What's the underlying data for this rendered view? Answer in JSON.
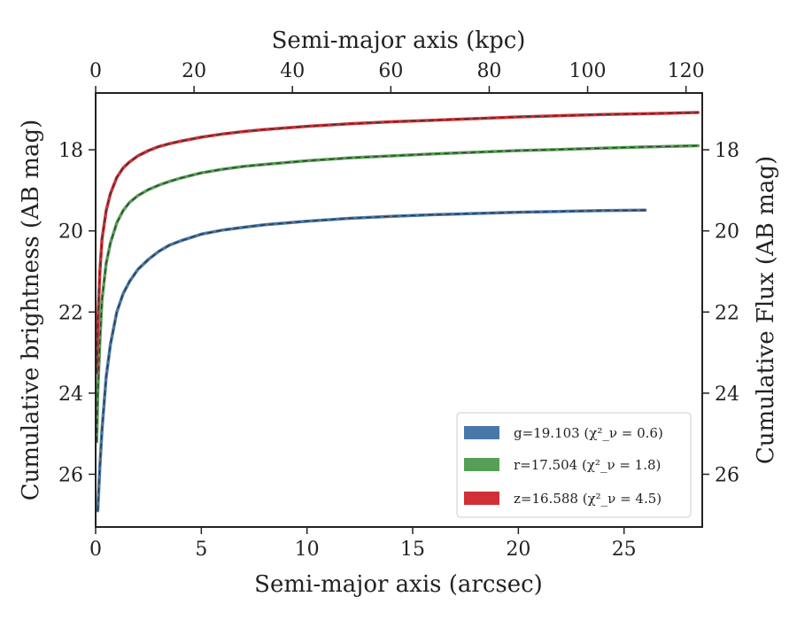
{
  "chart_data": {
    "type": "line",
    "title": "",
    "xlabel": "Semi-major axis (arcsec)",
    "x2label": "Semi-major axis (kpc)",
    "ylabel": "Cumulative brightness (AB mag)",
    "y2label": "Cumulative Flux (AB mag)",
    "xlim": [
      0,
      28.7
    ],
    "x2lim": [
      0,
      123.3
    ],
    "ylim": [
      27.3,
      16.6
    ],
    "y_inverted": true,
    "xticks": [
      0,
      5,
      10,
      15,
      20,
      25
    ],
    "x2ticks": [
      0,
      20,
      40,
      60,
      80,
      100,
      120
    ],
    "yticks": [
      18,
      20,
      22,
      24,
      26
    ],
    "grid": false,
    "legend_position": "lower-right",
    "legend": [
      {
        "label": "g=19.103 (χ²_ν = 0.6)",
        "color": "#4878a8"
      },
      {
        "label": "r=17.504 (χ²_ν = 1.8)",
        "color": "#55a054"
      },
      {
        "label": "z=16.588 (χ²_ν = 4.5)",
        "color": "#d03036"
      }
    ],
    "series": [
      {
        "band": "g",
        "color": "#4878a8",
        "x": [
          0.1,
          0.2,
          0.3,
          0.5,
          0.7,
          1.0,
          1.3,
          1.6,
          2.0,
          2.5,
          3.0,
          3.5,
          4.0,
          5.0,
          6.0,
          7.0,
          8.0,
          10.0,
          12.0,
          14.0,
          16.0,
          18.0,
          20.0,
          22.0,
          24.0,
          26.0
        ],
        "y": [
          26.9,
          25.8,
          24.9,
          23.6,
          22.8,
          22.0,
          21.55,
          21.25,
          20.95,
          20.7,
          20.5,
          20.35,
          20.25,
          20.08,
          19.98,
          19.91,
          19.85,
          19.76,
          19.69,
          19.64,
          19.6,
          19.57,
          19.54,
          19.52,
          19.5,
          19.49
        ]
      },
      {
        "band": "r",
        "color": "#55a054",
        "x": [
          0.05,
          0.1,
          0.2,
          0.3,
          0.5,
          0.7,
          1.0,
          1.3,
          1.6,
          2.0,
          2.5,
          3.0,
          3.5,
          4.0,
          5.0,
          6.0,
          7.0,
          8.0,
          10.0,
          12.0,
          14.0,
          16.0,
          18.0,
          20.0,
          22.0,
          24.0,
          26.0,
          28.5
        ],
        "y": [
          25.2,
          24.0,
          22.7,
          21.7,
          20.8,
          20.3,
          19.8,
          19.5,
          19.3,
          19.13,
          18.98,
          18.87,
          18.78,
          18.7,
          18.57,
          18.48,
          18.41,
          18.36,
          18.27,
          18.2,
          18.15,
          18.1,
          18.06,
          18.02,
          17.99,
          17.96,
          17.93,
          17.9
        ]
      },
      {
        "band": "z",
        "color": "#d03036",
        "x": [
          0.05,
          0.1,
          0.2,
          0.3,
          0.5,
          0.7,
          1.0,
          1.3,
          1.6,
          2.0,
          2.5,
          3.0,
          3.5,
          4.0,
          5.0,
          6.0,
          7.0,
          8.0,
          10.0,
          12.0,
          14.0,
          16.0,
          18.0,
          20.0,
          22.0,
          24.0,
          26.0,
          28.5
        ],
        "y": [
          23.5,
          22.3,
          21.0,
          20.2,
          19.5,
          19.08,
          18.68,
          18.45,
          18.3,
          18.15,
          18.02,
          17.92,
          17.85,
          17.79,
          17.69,
          17.61,
          17.55,
          17.5,
          17.42,
          17.36,
          17.31,
          17.27,
          17.23,
          17.19,
          17.16,
          17.13,
          17.11,
          17.08
        ]
      }
    ]
  }
}
